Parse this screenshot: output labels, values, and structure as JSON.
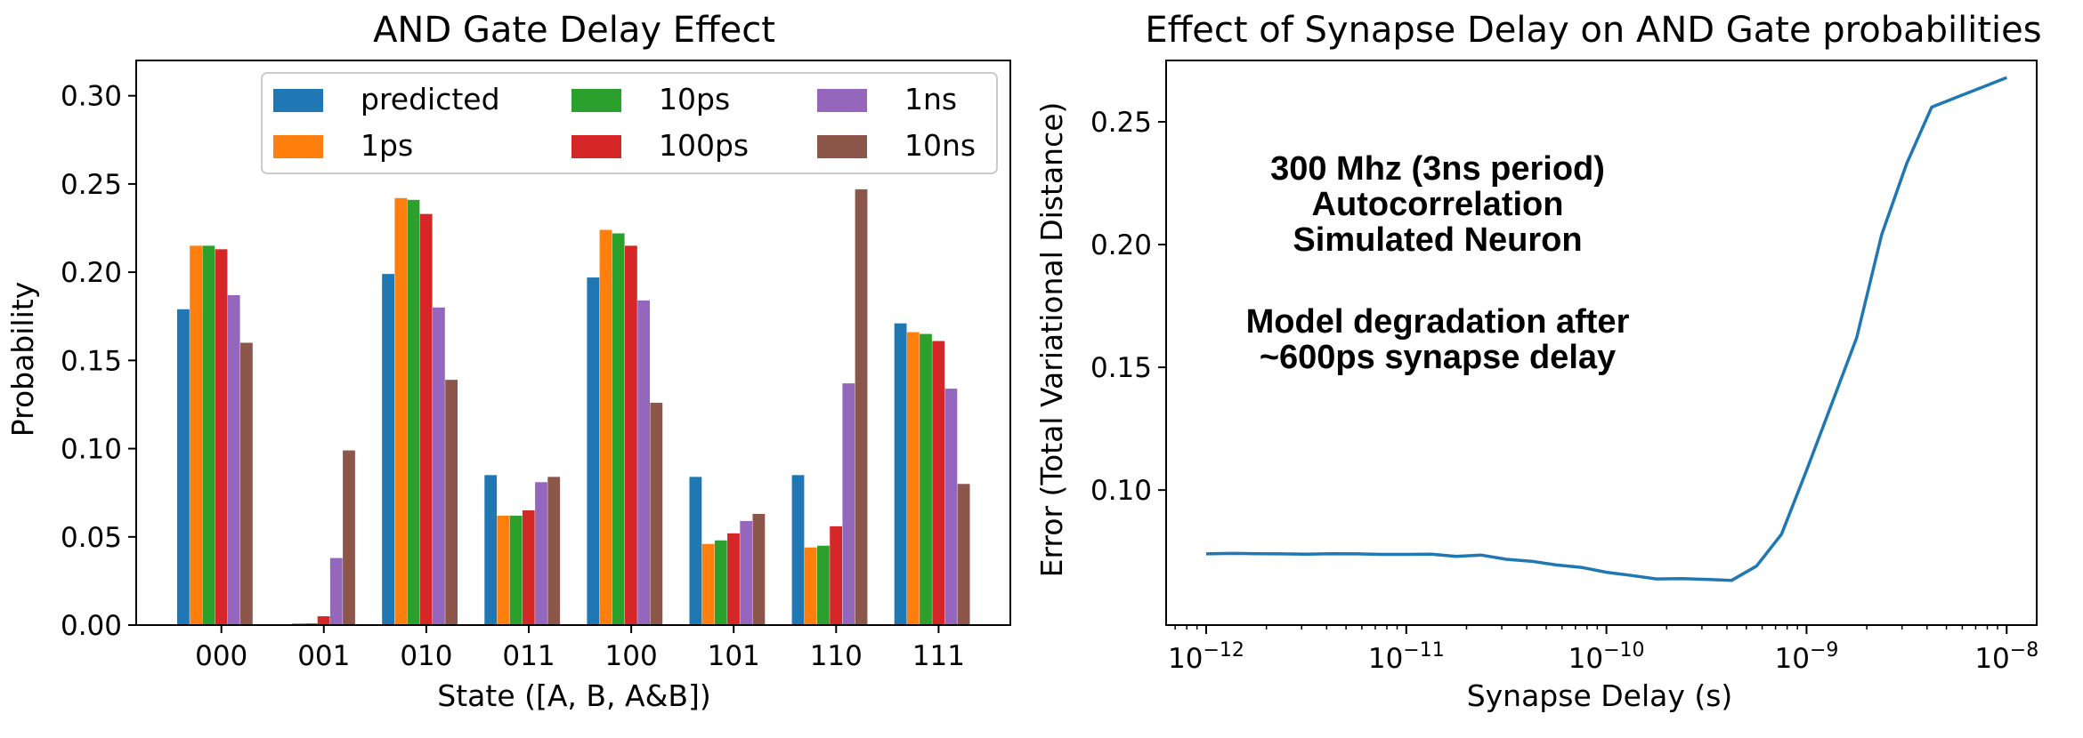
{
  "chart_data": [
    {
      "type": "bar",
      "title": "AND Gate Delay Effect",
      "xlabel": "State ([A, B, A&B])",
      "ylabel": "Probability",
      "ylim": [
        0,
        0.32
      ],
      "yticks": [
        "0.00",
        "0.05",
        "0.10",
        "0.15",
        "0.20",
        "0.25",
        "0.30"
      ],
      "ytick_values": [
        0,
        0.05,
        0.1,
        0.15,
        0.2,
        0.25,
        0.3
      ],
      "categories": [
        "000",
        "001",
        "010",
        "011",
        "100",
        "101",
        "110",
        "111"
      ],
      "legend_position": "top-right",
      "series": [
        {
          "name": "predicted",
          "color": "#1f77b4",
          "values": [
            0.179,
            0.0,
            0.199,
            0.085,
            0.197,
            0.084,
            0.085,
            0.171
          ]
        },
        {
          "name": "1ps",
          "color": "#ff7f0e",
          "values": [
            0.215,
            0.001,
            0.242,
            0.062,
            0.224,
            0.046,
            0.044,
            0.166
          ]
        },
        {
          "name": "10ps",
          "color": "#2ca02c",
          "values": [
            0.215,
            0.001,
            0.241,
            0.062,
            0.222,
            0.048,
            0.045,
            0.165
          ]
        },
        {
          "name": "100ps",
          "color": "#d62728",
          "values": [
            0.213,
            0.005,
            0.233,
            0.065,
            0.215,
            0.052,
            0.056,
            0.161
          ]
        },
        {
          "name": "1ns",
          "color": "#9467bd",
          "values": [
            0.187,
            0.038,
            0.18,
            0.081,
            0.184,
            0.059,
            0.137,
            0.134
          ]
        },
        {
          "name": "10ns",
          "color": "#8c564b",
          "values": [
            0.16,
            0.099,
            0.139,
            0.084,
            0.126,
            0.063,
            0.247,
            0.08
          ]
        }
      ]
    },
    {
      "type": "line",
      "title": "Effect of Synapse Delay on AND Gate probabilities",
      "xlabel": "Synapse Delay (s)",
      "ylabel": "Error (Total Variational Distance)",
      "xscale": "log",
      "xlim_exp": [
        -12.2,
        -7.85
      ],
      "ylim": [
        0.045,
        0.275
      ],
      "yticks": [
        "0.10",
        "0.15",
        "0.20",
        "0.25"
      ],
      "ytick_values": [
        0.1,
        0.15,
        0.2,
        0.25
      ],
      "xtick_exponents": [
        -12,
        -11,
        -10,
        -9,
        -8
      ],
      "xtick_base": "10",
      "xtick_labels": [
        "−12",
        "−11",
        "−10",
        "−9",
        "−8"
      ],
      "series": [
        {
          "name": "error",
          "color": "#1f77b4",
          "x_exp": [
            -12.0,
            -11.875,
            -11.75,
            -11.625,
            -11.5,
            -11.375,
            -11.25,
            -11.125,
            -11.0,
            -10.875,
            -10.75,
            -10.625,
            -10.5,
            -10.375,
            -10.25,
            -10.125,
            -10.0,
            -9.875,
            -9.75,
            -9.625,
            -9.5,
            -9.375,
            -9.25,
            -9.125,
            -9.0,
            -8.875,
            -8.75,
            -8.625,
            -8.5,
            -8.375,
            -8.25,
            -8.125,
            -8.0
          ],
          "y": [
            0.074,
            0.0742,
            0.0741,
            0.074,
            0.0739,
            0.0741,
            0.074,
            0.0738,
            0.0738,
            0.0739,
            0.073,
            0.0735,
            0.0718,
            0.071,
            0.0695,
            0.0685,
            0.0665,
            0.0652,
            0.0638,
            0.0639,
            0.0636,
            0.0632,
            0.069,
            0.082,
            0.108,
            0.135,
            0.162,
            0.204,
            0.233,
            0.256,
            0.26,
            0.264,
            0.268
          ]
        }
      ],
      "annotations": [
        [
          "300 Mhz (3ns period)",
          "Autocorrelation",
          "Simulated Neuron"
        ],
        [
          "Model degradation after",
          "~600ps synapse delay"
        ]
      ]
    }
  ]
}
